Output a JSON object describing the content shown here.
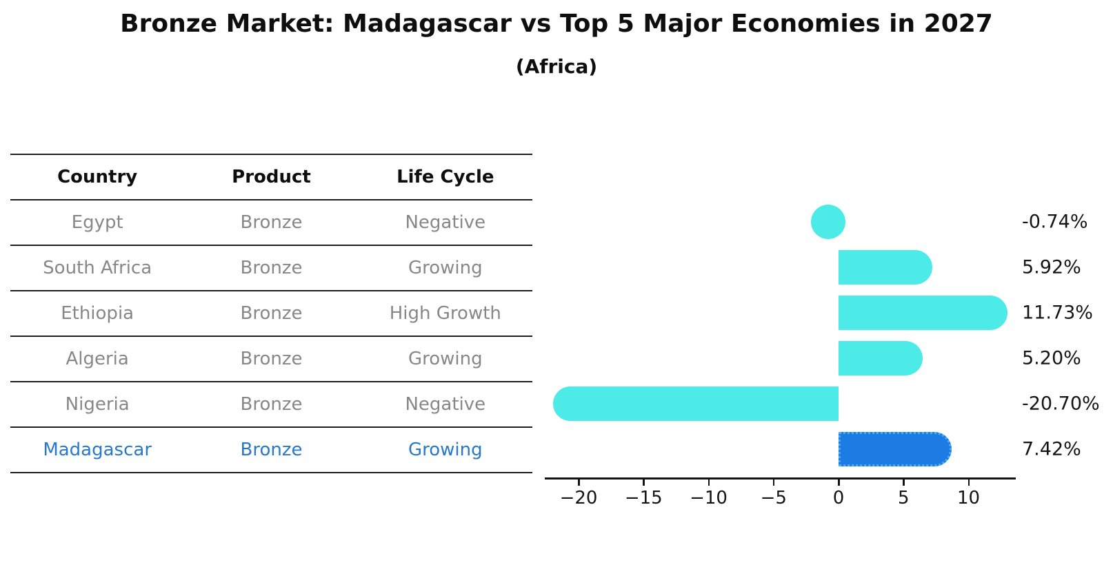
{
  "title": "Bronze Market: Madagascar vs Top 5 Major Economies in 2027",
  "subtitle": "(Africa)",
  "table": {
    "headers": [
      "Country",
      "Product",
      "Life Cycle"
    ],
    "rows": [
      {
        "country": "Egypt",
        "product": "Bronze",
        "life_cycle": "Negative",
        "highlight": false
      },
      {
        "country": "South Africa",
        "product": "Bronze",
        "life_cycle": "Growing",
        "highlight": false
      },
      {
        "country": "Ethiopia",
        "product": "Bronze",
        "life_cycle": "High Growth",
        "highlight": false
      },
      {
        "country": "Algeria",
        "product": "Bronze",
        "life_cycle": "Growing",
        "highlight": false
      },
      {
        "country": "Nigeria",
        "product": "Bronze",
        "life_cycle": "Negative",
        "highlight": false
      },
      {
        "country": "Madagascar",
        "product": "Bronze",
        "life_cycle": "Growing",
        "highlight": true
      }
    ]
  },
  "chart_data": {
    "type": "bar",
    "orientation": "horizontal",
    "title": "Bronze Market: Madagascar vs Top 5 Major Economies in 2027",
    "subtitle": "(Africa)",
    "categories": [
      "Egypt",
      "South Africa",
      "Ethiopia",
      "Algeria",
      "Nigeria",
      "Madagascar"
    ],
    "values": [
      -0.74,
      5.92,
      11.73,
      5.2,
      -20.7,
      7.42
    ],
    "value_labels": [
      "-0.74%",
      "5.92%",
      "11.73%",
      "5.20%",
      "-20.70%",
      "7.42%"
    ],
    "x_ticks": [
      -20,
      -15,
      -10,
      -5,
      0,
      5,
      10
    ],
    "x_tick_labels": [
      "−20",
      "−15",
      "−10",
      "−5",
      "0",
      "5",
      "10"
    ],
    "xlim": [
      -22.6,
      13.6
    ],
    "grid": false,
    "legend": null,
    "highlight_index": 5,
    "bar_color": "#4debe8",
    "highlight_bar_color": "#1c7ce4",
    "highlight_border_color": "#4facf2",
    "axis_color": "#141414",
    "table_text_color": "#878787",
    "highlight_text_color": "#2878cb"
  }
}
